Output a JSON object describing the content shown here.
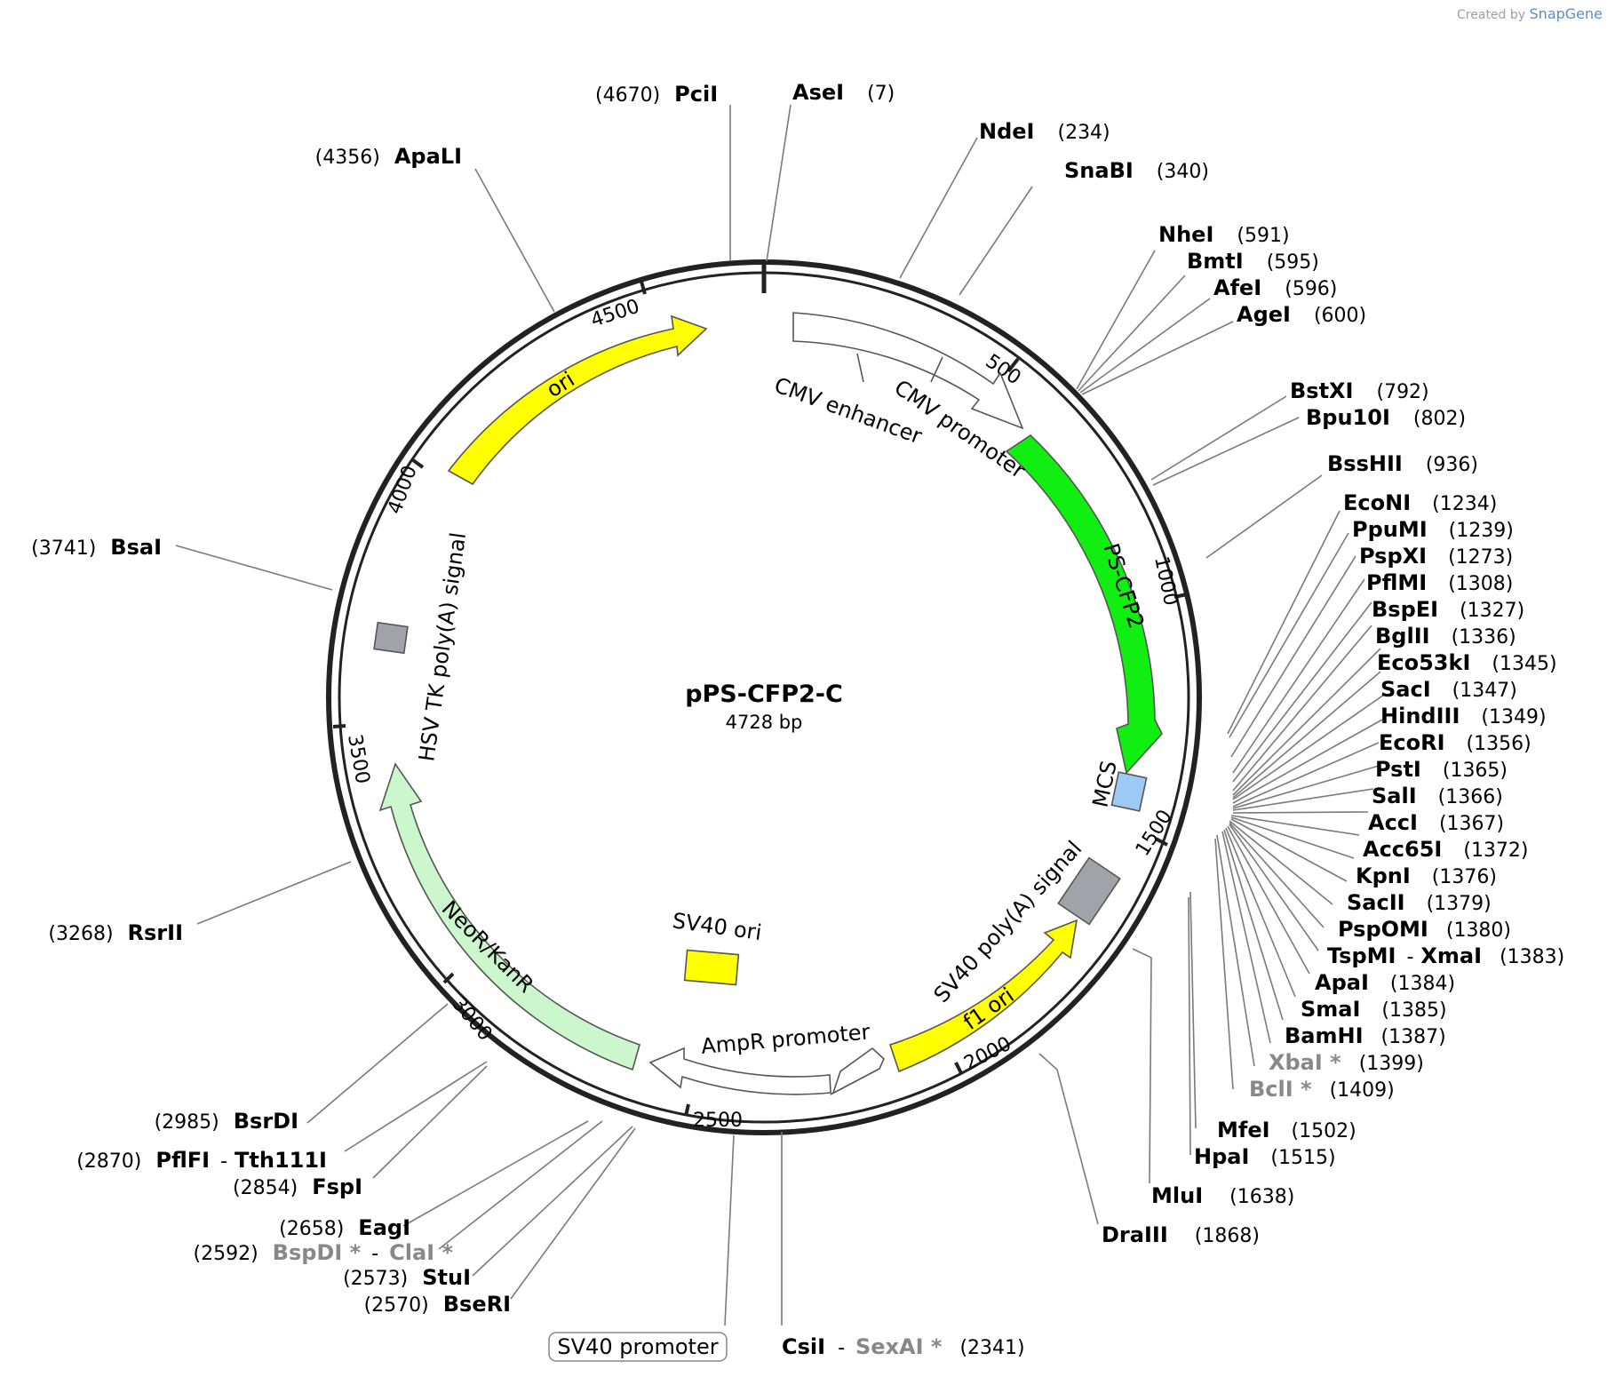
{
  "watermark": {
    "prefix": "Created by",
    "brand": "SnapGene"
  },
  "plasmid": {
    "name": "pPS-CFP2-C",
    "length": "4728 bp"
  },
  "ticks": [
    "500",
    "1000",
    "1500",
    "2000",
    "2500",
    "3000",
    "3500",
    "4000",
    "4500"
  ],
  "features": {
    "cmv_enhancer": "CMV enhancer",
    "cmv_promoter": "CMV promoter",
    "ps_cfp2": "PS-CFP2",
    "mcs": "MCS",
    "sv40_polya": "SV40 poly(A) signal",
    "f1_ori": "f1 ori",
    "ampr_promoter": "AmpR promoter",
    "sv40_ori": "SV40 ori",
    "neor": "NeoR/KanR",
    "hsv_tk": "HSV TK poly(A) signal",
    "ori": "ori",
    "sv40_promoter": "SV40 promoter"
  },
  "sites": {
    "pcii": {
      "name": "PciI",
      "pos": "(4670)"
    },
    "asei": {
      "name": "AseI",
      "pos": "(7)"
    },
    "ndei": {
      "name": "NdeI",
      "pos": "(234)"
    },
    "snabi": {
      "name": "SnaBI",
      "pos": "(340)"
    },
    "nhei": {
      "name": "NheI",
      "pos": "(591)"
    },
    "bmti": {
      "name": "BmtI",
      "pos": "(595)"
    },
    "afei": {
      "name": "AfeI",
      "pos": "(596)"
    },
    "agei": {
      "name": "AgeI",
      "pos": "(600)"
    },
    "bstxi": {
      "name": "BstXI",
      "pos": "(792)"
    },
    "bpu10i": {
      "name": "Bpu10I",
      "pos": "(802)"
    },
    "bsshii": {
      "name": "BssHII",
      "pos": "(936)"
    },
    "econi": {
      "name": "EcoNI",
      "pos": "(1234)"
    },
    "ppumi": {
      "name": "PpuMI",
      "pos": "(1239)"
    },
    "pspxi": {
      "name": "PspXI",
      "pos": "(1273)"
    },
    "pflmi": {
      "name": "PflMI",
      "pos": "(1308)"
    },
    "bspei": {
      "name": "BspEI",
      "pos": "(1327)"
    },
    "bglii": {
      "name": "BglII",
      "pos": "(1336)"
    },
    "eco53ki": {
      "name": "Eco53kI",
      "pos": "(1345)"
    },
    "saci": {
      "name": "SacI",
      "pos": "(1347)"
    },
    "hindiii": {
      "name": "HindIII",
      "pos": "(1349)"
    },
    "ecori": {
      "name": "EcoRI",
      "pos": "(1356)"
    },
    "psti": {
      "name": "PstI",
      "pos": "(1365)"
    },
    "sali": {
      "name": "SalI",
      "pos": "(1366)"
    },
    "acci": {
      "name": "AccI",
      "pos": "(1367)"
    },
    "acc65i": {
      "name": "Acc65I",
      "pos": "(1372)"
    },
    "kpni": {
      "name": "KpnI",
      "pos": "(1376)"
    },
    "sacii": {
      "name": "SacII",
      "pos": "(1379)"
    },
    "pspomi": {
      "name": "PspOMI",
      "pos": "(1380)"
    },
    "tspmi": {
      "name": "TspMI",
      "dash": "-",
      "name2": "XmaI",
      "pos": "(1383)"
    },
    "apai": {
      "name": "ApaI",
      "pos": "(1384)"
    },
    "smai": {
      "name": "SmaI",
      "pos": "(1385)"
    },
    "bamhi": {
      "name": "BamHI",
      "pos": "(1387)"
    },
    "xbai": {
      "name": "XbaI *",
      "pos": "(1399)"
    },
    "bcli": {
      "name": "BclI *",
      "pos": "(1409)"
    },
    "mfei": {
      "name": "MfeI",
      "pos": "(1502)"
    },
    "hpai": {
      "name": "HpaI",
      "pos": "(1515)"
    },
    "mlui": {
      "name": "MluI",
      "pos": "(1638)"
    },
    "draiii": {
      "name": "DraIII",
      "pos": "(1868)"
    },
    "csii": {
      "name": "CsiI",
      "dash": "-",
      "name2": "SexAI *",
      "pos": "(2341)"
    },
    "bseri": {
      "name": "BseRI",
      "pos": "(2570)"
    },
    "stui": {
      "name": "StuI",
      "pos": "(2573)"
    },
    "bspdi": {
      "name": "BspDI *",
      "dash": "-",
      "name2": "ClaI *",
      "pos": "(2592)"
    },
    "eagi": {
      "name": "EagI",
      "pos": "(2658)"
    },
    "fspi": {
      "name": "FspI",
      "pos": "(2854)"
    },
    "pflfi": {
      "name": "PflFI",
      "dash": "-",
      "name2": "Tth111I",
      "pos": "(2870)"
    },
    "bsrdi": {
      "name": "BsrDI",
      "pos": "(2985)"
    },
    "rsrii": {
      "name": "RsrII",
      "pos": "(3268)"
    },
    "bsai": {
      "name": "BsaI",
      "pos": "(3741)"
    },
    "apali": {
      "name": "ApaLI",
      "pos": "(4356)"
    }
  },
  "colors": {
    "backbone": "#222222",
    "ps_cfp2": "#11ee11",
    "mcs": "#9ec9f5",
    "polya": "#a0a4aa",
    "ori": "#ffff00",
    "neor": "#ccf7cc",
    "promoter": "#ffffff",
    "leader": "#7a7a7a",
    "gray_site": "#888888"
  }
}
